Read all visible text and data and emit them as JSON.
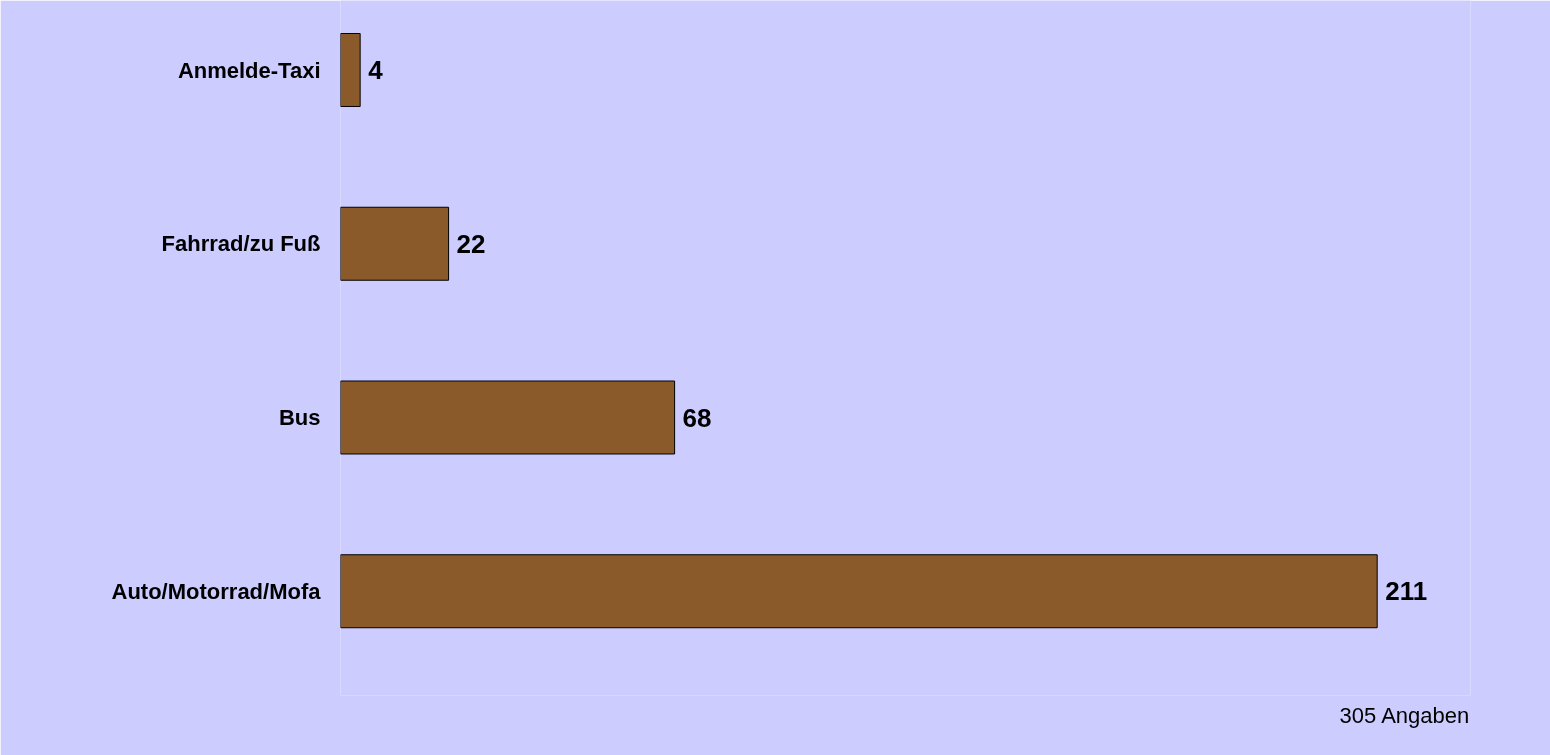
{
  "chart_data": {
    "type": "bar",
    "orientation": "horizontal",
    "categories": [
      "Anmelde-Taxi",
      "Fahrrad/zu Fuß",
      "Bus",
      "Auto/Motorrad/Mofa"
    ],
    "values": [
      4,
      22,
      68,
      211
    ],
    "color": "#8b5a2b",
    "data_labels": true,
    "grid": false,
    "annotations": [
      "305 Angaben"
    ]
  }
}
